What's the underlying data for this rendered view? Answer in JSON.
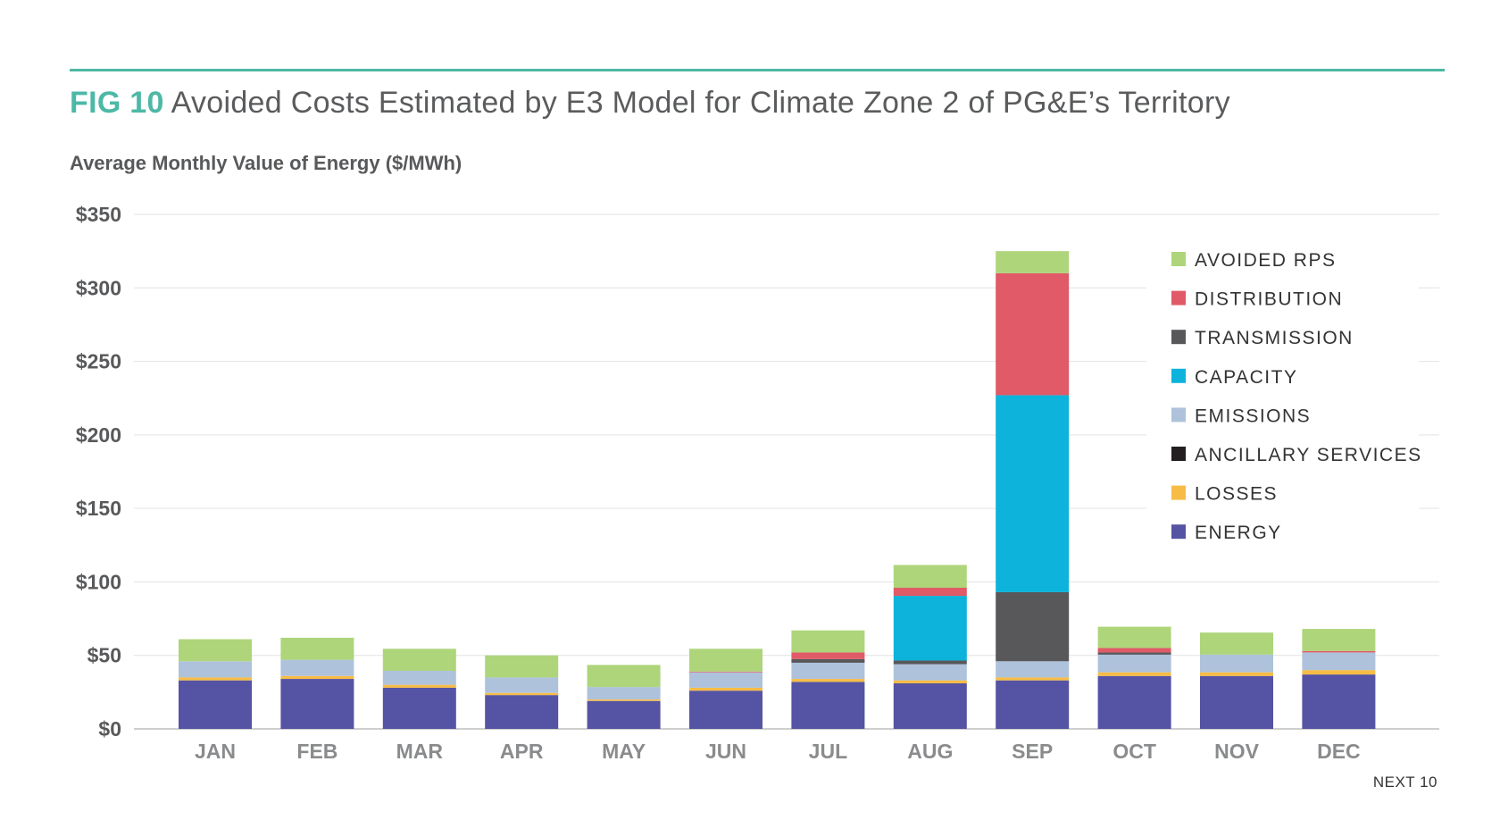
{
  "header": {
    "fig_label": "FIG 10",
    "title": "Avoided Costs Estimated by E3 Model for Climate Zone 2 of PG&E’s Territory",
    "subtitle": "Average Monthly Value of Energy ($/MWh)"
  },
  "footer": {
    "text": "NEXT 10"
  },
  "colors": {
    "accent": "#4db8a6",
    "energy": "#5553a3",
    "losses": "#f7bc46",
    "ancillary_services": "#231f20",
    "emissions": "#aec2db",
    "capacity": "#0db3db",
    "transmission": "#58585a",
    "distribution": "#e05a68",
    "avoided_rps": "#aed57a"
  },
  "chart_data": {
    "type": "bar",
    "stacked": true,
    "categories": [
      "JAN",
      "FEB",
      "MAR",
      "APR",
      "MAY",
      "JUN",
      "JUL",
      "AUG",
      "SEP",
      "OCT",
      "NOV",
      "DEC"
    ],
    "ylim": [
      0,
      350
    ],
    "yticks": [
      0,
      50,
      100,
      150,
      200,
      250,
      300,
      350
    ],
    "ytick_labels": [
      "$0",
      "$50",
      "$100",
      "$150",
      "$200",
      "$250",
      "$300",
      "$350"
    ],
    "grid": true,
    "legend_position": "top-right",
    "series": [
      {
        "name": "ENERGY",
        "color": "#5553a3",
        "values": [
          33,
          34,
          28,
          23,
          19,
          26,
          32,
          31,
          33,
          36,
          36,
          37
        ]
      },
      {
        "name": "LOSSES",
        "color": "#f7bc46",
        "values": [
          2,
          2,
          2,
          1.5,
          1,
          2,
          2,
          2,
          2,
          2.5,
          2.5,
          3
        ]
      },
      {
        "name": "ANCILLARY SERVICES",
        "color": "#231f20",
        "values": [
          0,
          0,
          0,
          0,
          0,
          0,
          0,
          0,
          0,
          0,
          0,
          0
        ]
      },
      {
        "name": "EMISSIONS",
        "color": "#aec2db",
        "values": [
          11,
          11,
          9.5,
          10.5,
          8.5,
          10.5,
          11,
          11,
          11,
          12,
          12,
          12
        ]
      },
      {
        "name": "TRANSMISSION",
        "color": "#58585a",
        "values": [
          0,
          0,
          0,
          0,
          0,
          0,
          2.5,
          2.5,
          47,
          1.5,
          0,
          0
        ]
      },
      {
        "name": "CAPACITY",
        "color": "#0db3db",
        "values": [
          0,
          0,
          0,
          0,
          0,
          0,
          0,
          44,
          134,
          0,
          0,
          0
        ]
      },
      {
        "name": "DISTRIBUTION",
        "color": "#e05a68",
        "values": [
          0,
          0,
          0,
          0,
          0,
          0.5,
          4.5,
          5.5,
          83,
          3,
          0,
          1
        ]
      },
      {
        "name": "AVOIDED RPS",
        "color": "#aed57a",
        "values": [
          15,
          15,
          15,
          15,
          15,
          15.5,
          15,
          15.5,
          15,
          14.5,
          15,
          15
        ]
      }
    ],
    "legend_order": [
      "AVOIDED RPS",
      "DISTRIBUTION",
      "TRANSMISSION",
      "CAPACITY",
      "EMISSIONS",
      "ANCILLARY SERVICES",
      "LOSSES",
      "ENERGY"
    ]
  }
}
